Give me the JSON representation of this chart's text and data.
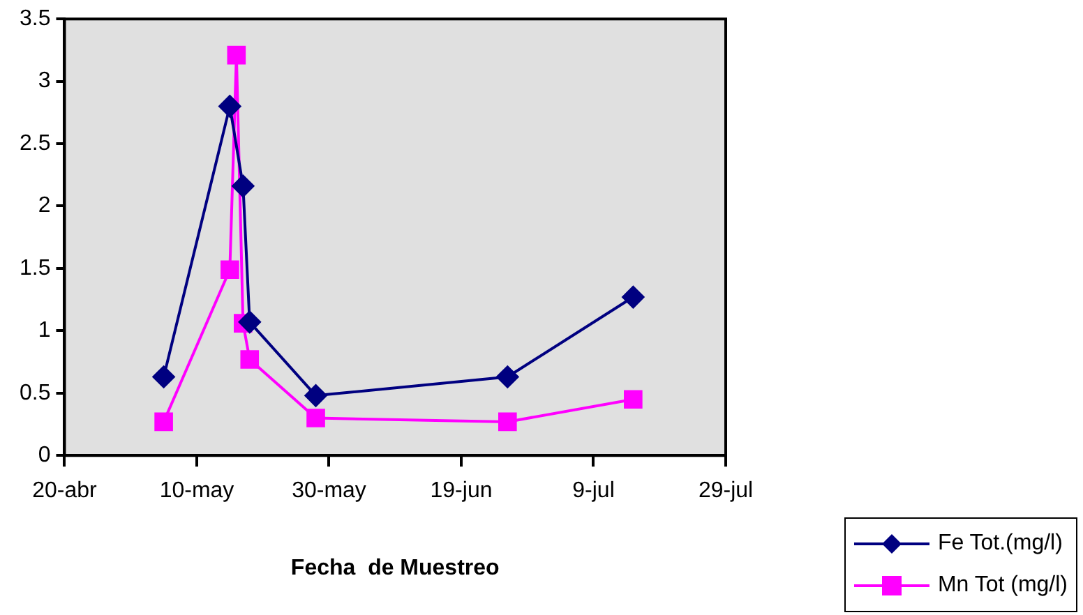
{
  "chart_data": {
    "type": "line",
    "xlabel": "Fecha  de Muestreo",
    "xlim": [
      "--04-20",
      "--07-29"
    ],
    "xticks": [
      {
        "value": "--04-20",
        "label": "20-abr"
      },
      {
        "value": "--05-10",
        "label": "10-may"
      },
      {
        "value": "--05-30",
        "label": "30-may"
      },
      {
        "value": "--06-19",
        "label": "19-jun"
      },
      {
        "value": "--07-09",
        "label": "9-jul"
      },
      {
        "value": "--07-29",
        "label": "29-jul"
      }
    ],
    "ylim": [
      0,
      3.5
    ],
    "yticks": [
      0,
      0.5,
      1,
      1.5,
      2,
      2.5,
      3,
      3.5
    ],
    "grid": false,
    "legend": "bottom right",
    "line_style": "solid",
    "series": [
      {
        "name": "Fe Tot.(mg/l)",
        "color": "#000080",
        "marker": "diamond",
        "x": [
          "--05-05",
          "--05-15",
          "--05-17",
          "--05-18",
          "--05-28",
          "--06-26",
          "--07-15"
        ],
        "values": [
          0.63,
          2.8,
          2.16,
          1.07,
          0.48,
          0.63,
          1.27
        ]
      },
      {
        "name": "Mn Tot (mg/l)",
        "color": "#ff00ff",
        "marker": "square",
        "x": [
          "--05-05",
          "--05-15",
          "--05-16",
          "--05-17",
          "--05-18",
          "--05-28",
          "--06-26",
          "--07-15"
        ],
        "values": [
          0.27,
          1.49,
          3.21,
          1.06,
          0.77,
          0.3,
          0.27,
          0.45
        ]
      }
    ]
  }
}
